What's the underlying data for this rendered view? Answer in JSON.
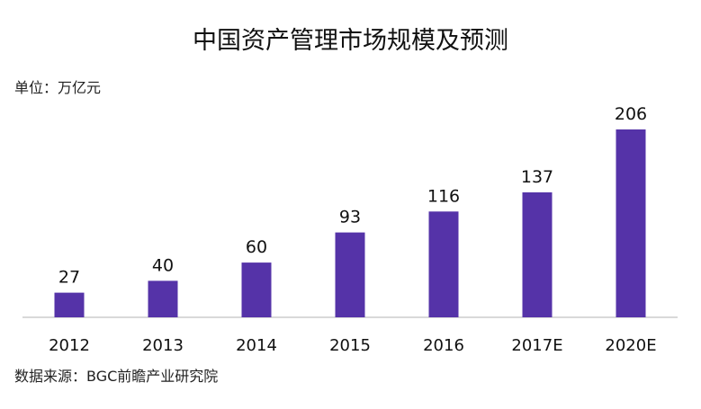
{
  "chart_data": {
    "type": "bar",
    "title": "中国资产管理市场规模及预测",
    "unit_label": "单位：万亿元",
    "source_label": "数据来源：BGC前瞻产业研究院",
    "categories": [
      "2012",
      "2013",
      "2014",
      "2015",
      "2016",
      "2017E",
      "2020E"
    ],
    "values": [
      27,
      40,
      60,
      93,
      116,
      137,
      206
    ],
    "ylim": [
      0,
      206
    ],
    "grid": false,
    "bar_color": "#5533a8",
    "axis_color": "#d9d9d9"
  }
}
